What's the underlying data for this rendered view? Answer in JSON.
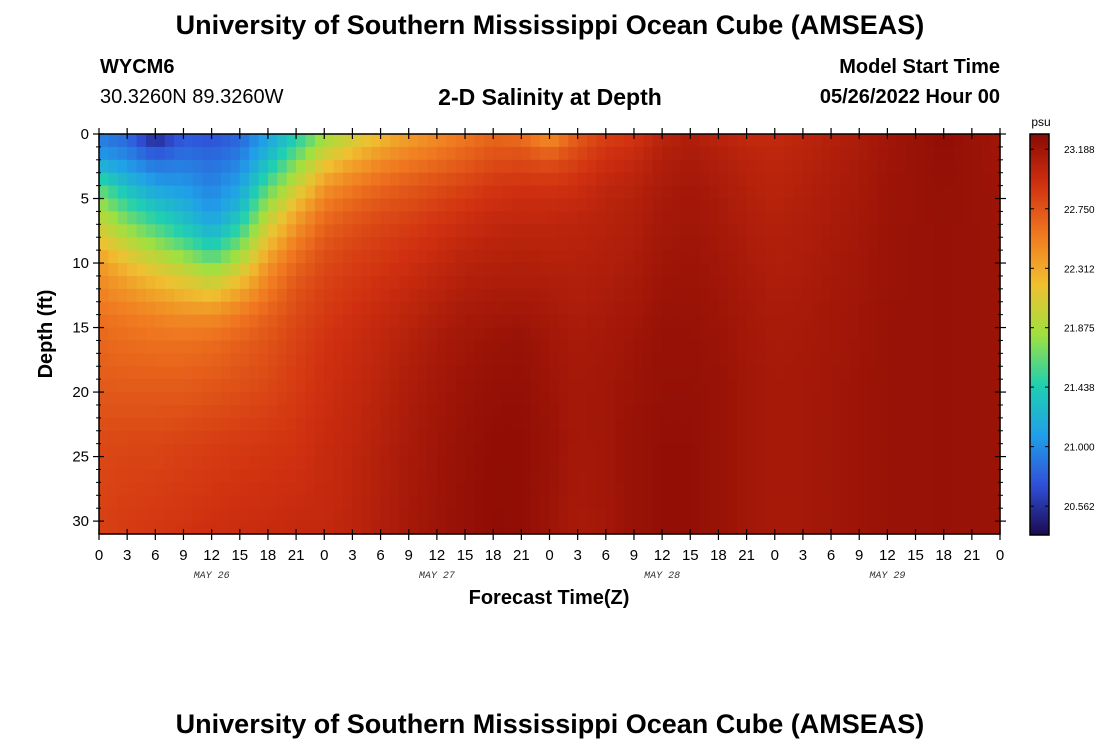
{
  "header": {
    "title": "University of Southern Mississippi Ocean Cube (AMSEAS)",
    "station": "WYCM6",
    "coords": "30.3260N  89.3260W",
    "subtitle": "2-D Salinity at Depth",
    "model_start_label": "Model Start Time",
    "model_start_value": "05/26/2022 Hour 00"
  },
  "footer": {
    "title": "University of Southern Mississippi Ocean Cube (AMSEAS)"
  },
  "chart_data": {
    "type": "heatmap",
    "xlabel": "Forecast Time(Z)",
    "ylabel": "Depth (ft)",
    "x_hours_range": [
      0,
      96
    ],
    "x_tick_labels": [
      "0",
      "3",
      "6",
      "9",
      "12",
      "15",
      "18",
      "21",
      "0",
      "3",
      "6",
      "9",
      "12",
      "15",
      "18",
      "21",
      "0",
      "3",
      "6",
      "9",
      "12",
      "15",
      "18",
      "21",
      "0",
      "3",
      "6",
      "9",
      "12",
      "15",
      "18",
      "21",
      "0"
    ],
    "date_labels": [
      {
        "label": "MAY 26",
        "hour": 12
      },
      {
        "label": "MAY 27",
        "hour": 36
      },
      {
        "label": "MAY 28",
        "hour": 60
      },
      {
        "label": "MAY 29",
        "hour": 84
      }
    ],
    "ylim": [
      0,
      31
    ],
    "y_ticks": [
      0,
      5,
      10,
      15,
      20,
      25,
      30
    ],
    "colorbar": {
      "unit": "psu",
      "range": [
        20.35,
        23.3
      ],
      "tick_values": [
        20.562,
        21.0,
        21.438,
        21.875,
        22.312,
        22.75,
        23.188
      ],
      "tick_labels": [
        "20.562",
        "21.000",
        "21.438",
        "21.875",
        "22.312",
        "22.750",
        "23.188"
      ],
      "colors": [
        "#1a0a50",
        "#3050d8",
        "#20a0e8",
        "#20d0b0",
        "#a0e040",
        "#f0c030",
        "#f07820",
        "#d03010",
        "#8a0a04"
      ]
    },
    "profile_depths_ft": [
      0,
      2,
      4,
      6,
      8,
      10,
      12,
      14,
      16,
      20,
      24,
      31
    ],
    "profiles": [
      {
        "hour": 0,
        "salinity": [
          20.9,
          21.1,
          21.6,
          21.9,
          22.15,
          22.4,
          22.5,
          22.6,
          22.65,
          22.72,
          22.8,
          22.85
        ]
      },
      {
        "hour": 3,
        "salinity": [
          20.8,
          21.0,
          21.3,
          21.6,
          21.9,
          22.2,
          22.4,
          22.55,
          22.62,
          22.72,
          22.82,
          22.88
        ]
      },
      {
        "hour": 6,
        "salinity": [
          20.45,
          20.85,
          21.1,
          21.4,
          21.7,
          22.05,
          22.3,
          22.5,
          22.6,
          22.72,
          22.82,
          22.9
        ]
      },
      {
        "hour": 9,
        "salinity": [
          20.75,
          20.9,
          21.05,
          21.25,
          21.5,
          21.9,
          22.2,
          22.45,
          22.6,
          22.72,
          22.84,
          22.92
        ]
      },
      {
        "hour": 12,
        "salinity": [
          20.7,
          20.85,
          20.95,
          21.05,
          21.3,
          21.7,
          22.1,
          22.45,
          22.62,
          22.75,
          22.86,
          22.95
        ]
      },
      {
        "hour": 15,
        "salinity": [
          20.8,
          20.95,
          21.1,
          21.3,
          21.6,
          21.95,
          22.3,
          22.55,
          22.68,
          22.78,
          22.88,
          22.97
        ]
      },
      {
        "hour": 18,
        "salinity": [
          21.1,
          21.3,
          21.6,
          21.9,
          22.15,
          22.4,
          22.55,
          22.68,
          22.75,
          22.82,
          22.9,
          22.98
        ]
      },
      {
        "hour": 21,
        "salinity": [
          21.4,
          21.7,
          22.0,
          22.3,
          22.5,
          22.65,
          22.75,
          22.8,
          22.84,
          22.88,
          22.92,
          23.0
        ]
      },
      {
        "hour": 24,
        "salinity": [
          21.8,
          22.1,
          22.4,
          22.6,
          22.72,
          22.8,
          22.85,
          22.88,
          22.92,
          22.95,
          22.98,
          23.0
        ]
      },
      {
        "hour": 27,
        "salinity": [
          22.0,
          22.3,
          22.55,
          22.7,
          22.8,
          22.86,
          22.9,
          22.94,
          22.97,
          23.0,
          23.02,
          23.04
        ]
      },
      {
        "hour": 30,
        "salinity": [
          22.2,
          22.45,
          22.65,
          22.78,
          22.86,
          22.9,
          22.95,
          22.99,
          23.02,
          23.05,
          23.08,
          23.1
        ]
      },
      {
        "hour": 33,
        "salinity": [
          22.35,
          22.55,
          22.72,
          22.82,
          22.9,
          22.95,
          23.0,
          23.04,
          23.08,
          23.12,
          23.14,
          23.16
        ]
      },
      {
        "hour": 36,
        "salinity": [
          22.45,
          22.62,
          22.78,
          22.88,
          22.95,
          23.0,
          23.05,
          23.1,
          23.14,
          23.17,
          23.19,
          23.2
        ]
      },
      {
        "hour": 39,
        "salinity": [
          22.55,
          22.7,
          22.84,
          22.93,
          23.0,
          23.06,
          23.1,
          23.15,
          23.18,
          23.21,
          23.23,
          23.24
        ]
      },
      {
        "hour": 42,
        "salinity": [
          22.65,
          22.78,
          22.9,
          22.98,
          23.04,
          23.08,
          23.12,
          23.17,
          23.21,
          23.24,
          23.26,
          23.27
        ]
      },
      {
        "hour": 45,
        "salinity": [
          22.6,
          22.8,
          22.92,
          23.0,
          23.05,
          23.09,
          23.13,
          23.18,
          23.22,
          23.25,
          23.26,
          23.26
        ]
      },
      {
        "hour": 48,
        "salinity": [
          22.4,
          22.75,
          22.92,
          23.0,
          23.05,
          23.08,
          23.12,
          23.15,
          23.18,
          23.2,
          23.22,
          23.2
        ]
      },
      {
        "hour": 51,
        "salinity": [
          22.7,
          22.85,
          22.95,
          23.02,
          23.06,
          23.08,
          23.1,
          23.12,
          23.14,
          23.16,
          23.16,
          23.14
        ]
      },
      {
        "hour": 54,
        "salinity": [
          22.85,
          22.95,
          23.02,
          23.06,
          23.08,
          23.1,
          23.12,
          23.14,
          23.16,
          23.18,
          23.18,
          23.17
        ]
      },
      {
        "hour": 57,
        "salinity": [
          22.9,
          23.0,
          23.06,
          23.09,
          23.11,
          23.13,
          23.15,
          23.17,
          23.19,
          23.21,
          23.22,
          23.22
        ]
      },
      {
        "hour": 60,
        "salinity": [
          23.05,
          23.1,
          23.13,
          23.15,
          23.17,
          23.19,
          23.2,
          23.22,
          23.23,
          23.24,
          23.25,
          23.25
        ]
      },
      {
        "hour": 63,
        "salinity": [
          23.1,
          23.14,
          23.16,
          23.18,
          23.19,
          23.2,
          23.21,
          23.22,
          23.23,
          23.24,
          23.25,
          23.25
        ]
      },
      {
        "hour": 66,
        "salinity": [
          23.05,
          23.1,
          23.13,
          23.15,
          23.16,
          23.18,
          23.19,
          23.2,
          23.21,
          23.22,
          23.22,
          23.22
        ]
      },
      {
        "hour": 69,
        "salinity": [
          23.0,
          23.05,
          23.08,
          23.1,
          23.12,
          23.14,
          23.15,
          23.16,
          23.17,
          23.18,
          23.18,
          23.18
        ]
      },
      {
        "hour": 72,
        "salinity": [
          23.0,
          23.03,
          23.05,
          23.07,
          23.09,
          23.1,
          23.12,
          23.13,
          23.14,
          23.15,
          23.15,
          23.15
        ]
      },
      {
        "hour": 75,
        "salinity": [
          23.03,
          23.06,
          23.08,
          23.1,
          23.11,
          23.12,
          23.13,
          23.14,
          23.15,
          23.16,
          23.16,
          23.16
        ]
      },
      {
        "hour": 78,
        "salinity": [
          23.08,
          23.1,
          23.12,
          23.13,
          23.14,
          23.15,
          23.16,
          23.17,
          23.17,
          23.18,
          23.18,
          23.18
        ]
      },
      {
        "hour": 81,
        "salinity": [
          23.12,
          23.14,
          23.15,
          23.16,
          23.17,
          23.18,
          23.18,
          23.19,
          23.19,
          23.2,
          23.2,
          23.2
        ]
      },
      {
        "hour": 84,
        "salinity": [
          23.18,
          23.19,
          23.2,
          23.2,
          23.21,
          23.21,
          23.21,
          23.22,
          23.22,
          23.22,
          23.22,
          23.22
        ]
      },
      {
        "hour": 87,
        "salinity": [
          23.22,
          23.22,
          23.22,
          23.22,
          23.22,
          23.22,
          23.22,
          23.22,
          23.22,
          23.22,
          23.22,
          23.22
        ]
      },
      {
        "hour": 90,
        "salinity": [
          23.26,
          23.25,
          23.24,
          23.24,
          23.23,
          23.23,
          23.23,
          23.23,
          23.23,
          23.23,
          23.23,
          23.23
        ]
      },
      {
        "hour": 93,
        "salinity": [
          23.22,
          23.22,
          23.22,
          23.22,
          23.22,
          23.22,
          23.22,
          23.22,
          23.22,
          23.22,
          23.22,
          23.22
        ]
      },
      {
        "hour": 96,
        "salinity": [
          23.18,
          23.19,
          23.2,
          23.2,
          23.21,
          23.21,
          23.21,
          23.21,
          23.21,
          23.21,
          23.21,
          23.21
        ]
      }
    ]
  }
}
